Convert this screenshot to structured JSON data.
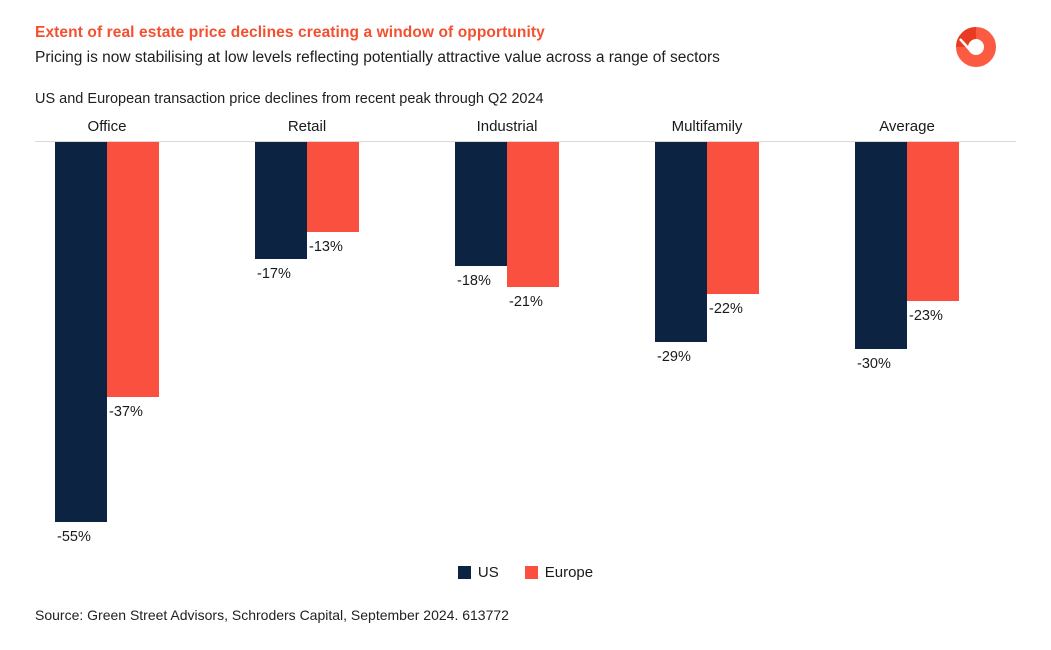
{
  "header": {
    "title": "Extent of real estate price declines creating a window of opportunity",
    "subtitle": "Pricing is now stabilising at low levels reflecting potentially attractive value across a range of sectors",
    "caption": "US and European transaction price declines from recent peak through Q2 2024"
  },
  "colors": {
    "us": "#0d2342",
    "europe": "#f95040",
    "title_accent": "#f4502f",
    "axis_line": "#d9d9d9",
    "logo_light": "#fa5b41",
    "logo_dark": "#e83b22"
  },
  "chart_data": {
    "type": "bar",
    "orientation": "vertical",
    "categories": [
      "Office",
      "Retail",
      "Industrial",
      "Multifamily",
      "Average"
    ],
    "series": [
      {
        "name": "US",
        "color": "#0d2342",
        "values": [
          -55,
          -17,
          -18,
          -29,
          -30
        ]
      },
      {
        "name": "Europe",
        "color": "#f95040",
        "values": [
          -37,
          -13,
          -21,
          -22,
          -23
        ]
      }
    ],
    "value_label_format": "{value}%",
    "title": "US and European transaction price declines from recent peak through Q2 2024",
    "xlabel": "",
    "ylabel": "",
    "ylim": [
      -60,
      0
    ],
    "grid": false,
    "legend_position": "bottom",
    "legend": [
      "US",
      "Europe"
    ]
  },
  "footer": {
    "source": "Source: Green Street Advisors, Schroders Capital, September 2024. 613772"
  }
}
